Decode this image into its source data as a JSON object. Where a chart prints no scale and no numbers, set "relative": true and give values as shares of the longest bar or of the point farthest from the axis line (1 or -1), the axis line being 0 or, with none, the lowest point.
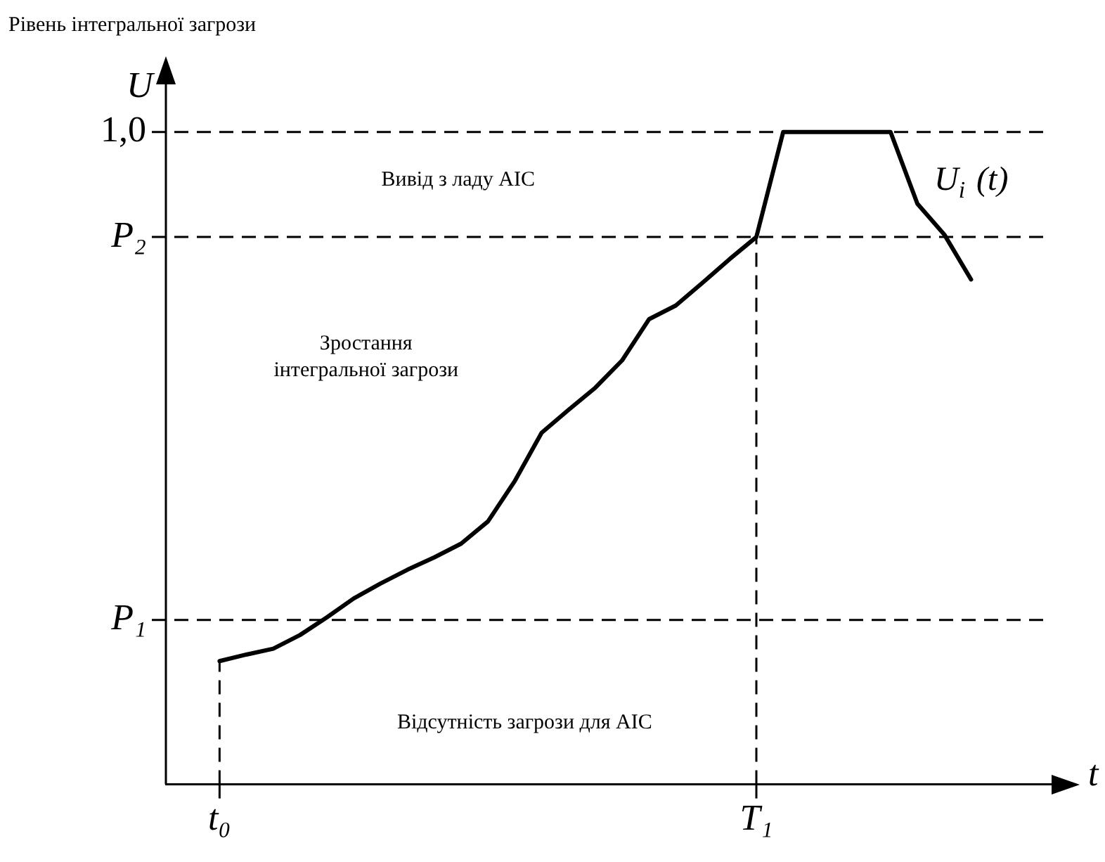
{
  "chart_data": {
    "type": "line",
    "title": "Рівень інтегральної загрози",
    "xlabel": "t",
    "ylabel": "U",
    "relative": true,
    "legend": false,
    "grid": false,
    "marker": "none",
    "categories": [
      null,
      null,
      "t₀",
      null,
      null,
      null,
      null,
      null,
      null,
      null,
      null,
      null,
      null,
      null,
      null,
      null,
      null,
      null,
      null,
      null,
      null,
      null,
      "T₁",
      null,
      null,
      null,
      null,
      null,
      null,
      null,
      null,
      null,
      null,
      null
    ],
    "series": [
      {
        "name": "U$_{i}$ (t)",
        "color": "#000000",
        "line_style": "solid",
        "values": [
          null,
          null,
          0.189,
          0.199,
          0.208,
          0.229,
          0.256,
          0.285,
          0.308,
          0.329,
          0.348,
          0.369,
          0.403,
          0.465,
          0.539,
          0.574,
          0.608,
          0.65,
          0.713,
          0.734,
          0.769,
          0.805,
          0.839,
          1,
          1,
          1,
          1,
          1,
          0.89,
          0.843,
          0.774,
          null,
          null,
          null
        ]
      }
    ],
    "ref_lines": [
      {
        "axis": "y",
        "value": 1,
        "label": "1,0",
        "line_style": "dashed"
      },
      {
        "axis": "y",
        "value": 0.839,
        "label": "P₂",
        "line_style": "dashed"
      },
      {
        "axis": "y",
        "value": 0.252,
        "label": "P₁",
        "line_style": "dashed"
      },
      {
        "axis": "x",
        "value": "t₀",
        "line_style": "dashed"
      },
      {
        "axis": "x",
        "value": "T₁",
        "line_style": "dashed"
      }
    ],
    "annotations": [
      "Вивід з ладу AIC",
      "Зростання інтегральної загрози",
      "Відсутність загрози для AIC"
    ]
  }
}
